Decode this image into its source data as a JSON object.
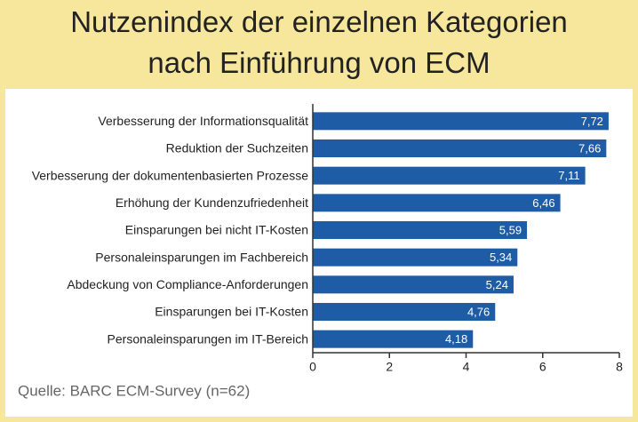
{
  "chart_data": {
    "type": "bar",
    "orientation": "horizontal",
    "title": "Nutzenindex der einzelnen Kategorien nach Einführung von ECM",
    "categories": [
      "Verbesserung der Informationsqualität",
      "Reduktion der Suchzeiten",
      "Verbesserung der dokumentenbasierten Prozesse",
      "Erhöhung der Kundenzufriedenheit",
      "Einsparungen bei nicht IT-Kosten",
      "Personaleinsparungen im Fachbereich",
      "Abdeckung von Compliance-Anforderungen",
      "Einsparungen bei IT-Kosten",
      "Personaleinsparungen im IT-Bereich"
    ],
    "values": [
      7.72,
      7.66,
      7.11,
      6.46,
      5.59,
      5.34,
      5.24,
      4.76,
      4.18
    ],
    "value_labels": [
      "7,72",
      "7,66",
      "7,11",
      "6,46",
      "5,59",
      "5,34",
      "5,24",
      "4,76",
      "4,18"
    ],
    "color": "#1f5ca6",
    "xlim": [
      0,
      8
    ],
    "xticks": [
      0,
      2,
      4,
      6,
      8
    ],
    "source": "Quelle: BARC ECM-Survey (n=62)"
  }
}
